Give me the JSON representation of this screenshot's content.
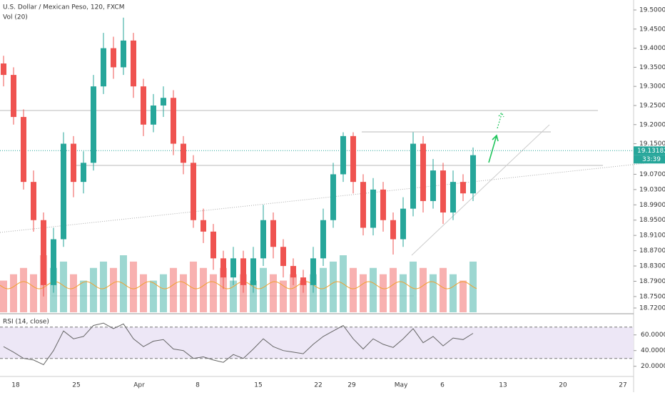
{
  "chart_data": {
    "type": "candlestick",
    "title": "U.S. Dollar / Mexican Peso, 120, FXCM",
    "volume_label": "Vol (20)",
    "up_color": "#26a69a",
    "down_color": "#ef5350",
    "open": [
      19.36,
      19.33,
      19.22,
      19.05,
      18.95,
      18.78,
      18.9,
      19.15,
      19.05,
      19.1,
      19.3,
      19.4,
      19.35,
      19.42,
      19.3,
      19.2,
      19.25,
      19.27,
      19.15,
      19.1,
      18.95,
      18.92,
      18.85,
      18.8,
      18.85,
      18.78,
      18.85,
      18.95,
      18.88,
      18.83,
      18.8,
      18.78,
      18.85,
      18.95,
      19.07,
      19.17,
      19.05,
      18.93,
      19.03,
      18.95,
      18.9,
      18.98,
      19.15,
      19.0,
      19.08,
      18.97,
      19.05,
      19.02
    ],
    "high": [
      19.38,
      19.35,
      19.24,
      19.08,
      18.97,
      18.93,
      19.18,
      19.17,
      19.13,
      19.33,
      19.44,
      19.43,
      19.48,
      19.44,
      19.32,
      19.28,
      19.3,
      19.29,
      19.17,
      19.12,
      18.98,
      18.94,
      18.87,
      18.88,
      18.87,
      18.88,
      18.99,
      18.97,
      18.9,
      18.85,
      18.82,
      18.88,
      18.98,
      19.1,
      19.18,
      19.18,
      19.07,
      19.06,
      19.05,
      18.97,
      19.01,
      19.18,
      19.17,
      19.11,
      19.1,
      19.08,
      19.07,
      19.14
    ],
    "low": [
      19.3,
      19.2,
      19.03,
      18.92,
      18.75,
      18.76,
      18.88,
      19.01,
      19.02,
      19.08,
      19.28,
      19.32,
      19.33,
      19.27,
      19.17,
      19.18,
      19.22,
      19.12,
      19.07,
      18.93,
      18.89,
      18.82,
      18.77,
      18.78,
      18.76,
      18.76,
      18.83,
      18.85,
      18.8,
      18.78,
      18.76,
      18.76,
      18.83,
      18.93,
      19.05,
      19.02,
      18.91,
      18.91,
      18.92,
      18.86,
      18.88,
      18.96,
      18.97,
      18.98,
      18.94,
      18.95,
      19.0,
      19.0
    ],
    "close": [
      19.33,
      19.22,
      19.05,
      18.95,
      18.78,
      18.9,
      19.15,
      19.05,
      19.1,
      19.3,
      19.4,
      19.35,
      19.42,
      19.3,
      19.2,
      19.25,
      19.27,
      19.15,
      19.1,
      18.95,
      18.92,
      18.85,
      18.8,
      18.85,
      18.78,
      18.85,
      18.95,
      18.88,
      18.83,
      18.8,
      18.78,
      18.85,
      18.95,
      19.07,
      19.17,
      19.05,
      18.93,
      19.03,
      18.95,
      18.9,
      18.98,
      19.15,
      19.0,
      19.08,
      18.97,
      19.05,
      19.02,
      19.12
    ],
    "volume": [
      5,
      6,
      7,
      6,
      9,
      7,
      8,
      6,
      5,
      7,
      8,
      7,
      9,
      8,
      6,
      5,
      6,
      7,
      6,
      8,
      7,
      6,
      7,
      5,
      6,
      5,
      7,
      6,
      5,
      6,
      5,
      6,
      7,
      8,
      9,
      7,
      6,
      7,
      6,
      7,
      6,
      8,
      7,
      6,
      7,
      6,
      5,
      8
    ],
    "ylim": [
      18.72,
      19.5
    ],
    "yticks": [
      {
        "value": 19.5,
        "label": "19.50000"
      },
      {
        "value": 19.45,
        "label": "19.45000"
      },
      {
        "value": 19.4,
        "label": "19.40000"
      },
      {
        "value": 19.35,
        "label": "19.35000"
      },
      {
        "value": 19.3,
        "label": "19.30000"
      },
      {
        "value": 19.25,
        "label": "19.25000"
      },
      {
        "value": 19.2,
        "label": "19.20000"
      },
      {
        "value": 19.15,
        "label": "19.15000"
      },
      {
        "value": 19.07,
        "label": "19.07000"
      },
      {
        "value": 19.03,
        "label": "19.03000"
      },
      {
        "value": 18.99,
        "label": "18.99000"
      },
      {
        "value": 18.95,
        "label": "18.95000"
      },
      {
        "value": 18.91,
        "label": "18.91000"
      },
      {
        "value": 18.87,
        "label": "18.87000"
      },
      {
        "value": 18.83,
        "label": "18.83000"
      },
      {
        "value": 18.79,
        "label": "18.79000"
      },
      {
        "value": 18.75,
        "label": "18.75000"
      },
      {
        "value": 18.72,
        "label": "18.72000"
      }
    ],
    "current_price": 19.13182,
    "countdown": "33:39",
    "x_labels": [
      "18",
      "25",
      "Apr",
      "8",
      "15",
      "22",
      "29",
      "May",
      "6",
      "13",
      "20",
      "27"
    ],
    "rsi": {
      "label": "RSI (14, close)",
      "values": [
        45,
        38,
        30,
        28,
        22,
        40,
        65,
        55,
        58,
        72,
        75,
        68,
        74,
        55,
        45,
        52,
        54,
        42,
        40,
        30,
        32,
        28,
        25,
        35,
        30,
        42,
        55,
        45,
        40,
        38,
        36,
        48,
        58,
        65,
        72,
        55,
        42,
        55,
        48,
        44,
        55,
        68,
        50,
        58,
        46,
        56,
        54,
        62
      ],
      "ylim": [
        7,
        87
      ],
      "yticks": [
        {
          "value": 60,
          "label": "60.0000"
        },
        {
          "value": 40,
          "label": "40.0000"
        },
        {
          "value": 20,
          "label": "20.0000"
        }
      ],
      "bands": [
        70,
        30
      ]
    }
  }
}
